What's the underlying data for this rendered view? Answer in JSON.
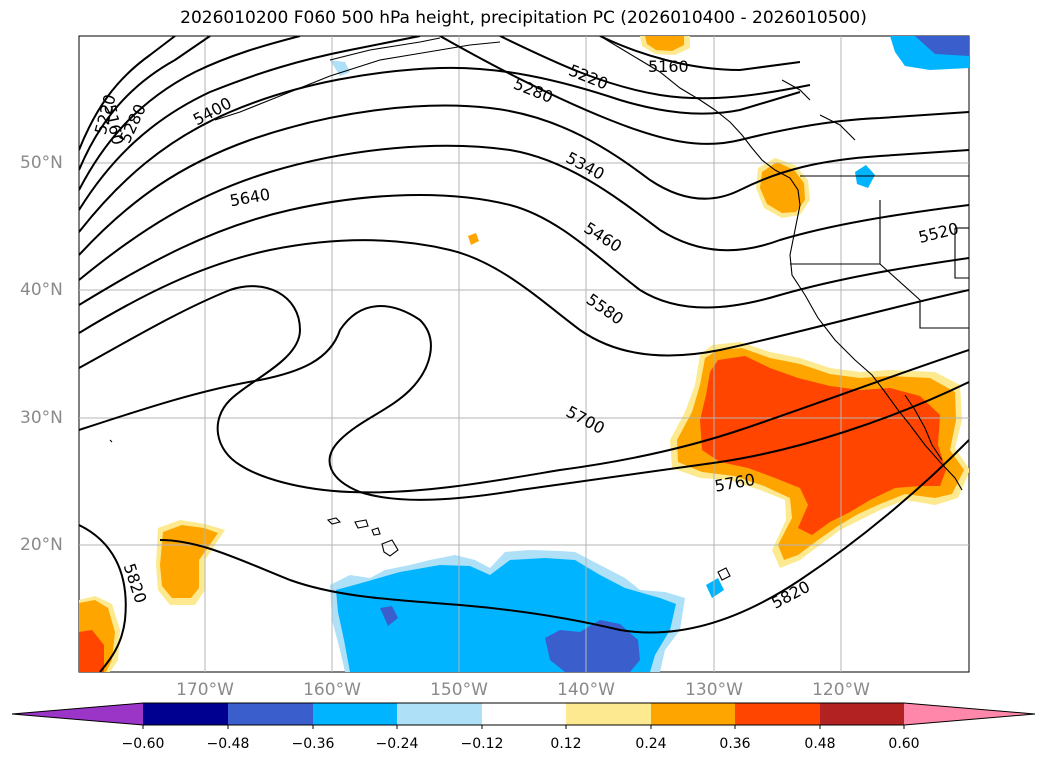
{
  "title": "2026010200 F060 500 hPa height, precipitation PC (2026010400 - 2026010500)",
  "map": {
    "lon_labels": [
      "170°W",
      "160°W",
      "150°W",
      "140°W",
      "130°W",
      "120°W"
    ],
    "lat_labels": [
      "50°N",
      "40°N",
      "30°N",
      "20°N"
    ],
    "contour_labels": [
      "5160",
      "5220",
      "5280",
      "5400",
      "5640",
      "5280",
      "5220",
      "5160",
      "5340",
      "5460",
      "5520",
      "5580",
      "5700",
      "5760",
      "5820",
      "5820"
    ]
  },
  "colorbar": {
    "ticks": [
      "−0.60",
      "−0.48",
      "−0.36",
      "−0.24",
      "−0.12",
      "0.12",
      "0.24",
      "0.36",
      "0.48",
      "0.60"
    ],
    "colors": {
      "under": "#9a35c8",
      "bins": [
        "#000090",
        "#3a5fcd",
        "#00b4ff",
        "#aee0f8",
        "#ffffff",
        "#fde98f",
        "#ffa500",
        "#ff4500",
        "#b22222"
      ],
      "over": "#ff88aa"
    }
  }
}
